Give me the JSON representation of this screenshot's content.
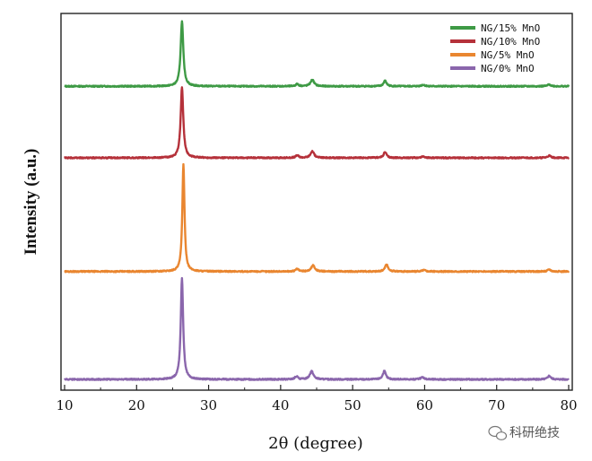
{
  "chart_data": {
    "type": "line",
    "title": "",
    "xlabel": "2θ (degree)",
    "ylabel": "Intensity (a.u.)",
    "xlim": [
      10,
      80
    ],
    "xticks": [
      10,
      20,
      30,
      40,
      50,
      60,
      70,
      80
    ],
    "xtick_labels": [
      "10",
      "20",
      "30",
      "40",
      "50",
      "60",
      "70",
      "80"
    ],
    "ylim": [
      0,
      1
    ],
    "yticks_visible": false,
    "grid": false,
    "legend_position": "top-right",
    "series": [
      {
        "name": "NG/15% MnO",
        "color": "#3e9a45",
        "baseline": 0.815,
        "peaks": [
          [
            26.3,
            0.18,
            0.22
          ],
          [
            42.3,
            0.006,
            0.25
          ],
          [
            44.4,
            0.018,
            0.3
          ],
          [
            54.5,
            0.015,
            0.25
          ],
          [
            59.8,
            0.004,
            0.3
          ],
          [
            77.3,
            0.005,
            0.25
          ]
        ]
      },
      {
        "name": "NG/10% MnO",
        "color": "#b5313a",
        "baseline": 0.616,
        "peaks": [
          [
            26.3,
            0.195,
            0.22
          ],
          [
            42.3,
            0.007,
            0.25
          ],
          [
            44.4,
            0.018,
            0.3
          ],
          [
            54.5,
            0.016,
            0.25
          ],
          [
            59.8,
            0.004,
            0.3
          ],
          [
            77.3,
            0.006,
            0.25
          ]
        ]
      },
      {
        "name": "NG/5% MnO",
        "color": "#e98630",
        "baseline": 0.3,
        "peaks": [
          [
            26.5,
            0.3,
            0.18
          ],
          [
            42.3,
            0.007,
            0.25
          ],
          [
            44.5,
            0.017,
            0.3
          ],
          [
            54.7,
            0.02,
            0.25
          ],
          [
            59.9,
            0.004,
            0.3
          ],
          [
            77.3,
            0.006,
            0.25
          ]
        ]
      },
      {
        "name": "NG/0% MnO",
        "color": "#8a66ac",
        "baseline": 0.0,
        "peaks": [
          [
            26.3,
            0.28,
            0.2
          ],
          [
            42.2,
            0.008,
            0.25
          ],
          [
            44.3,
            0.023,
            0.3
          ],
          [
            54.4,
            0.023,
            0.25
          ],
          [
            59.7,
            0.006,
            0.3
          ],
          [
            77.3,
            0.01,
            0.25
          ]
        ]
      }
    ]
  },
  "watermark": {
    "text": "科研绝技"
  }
}
